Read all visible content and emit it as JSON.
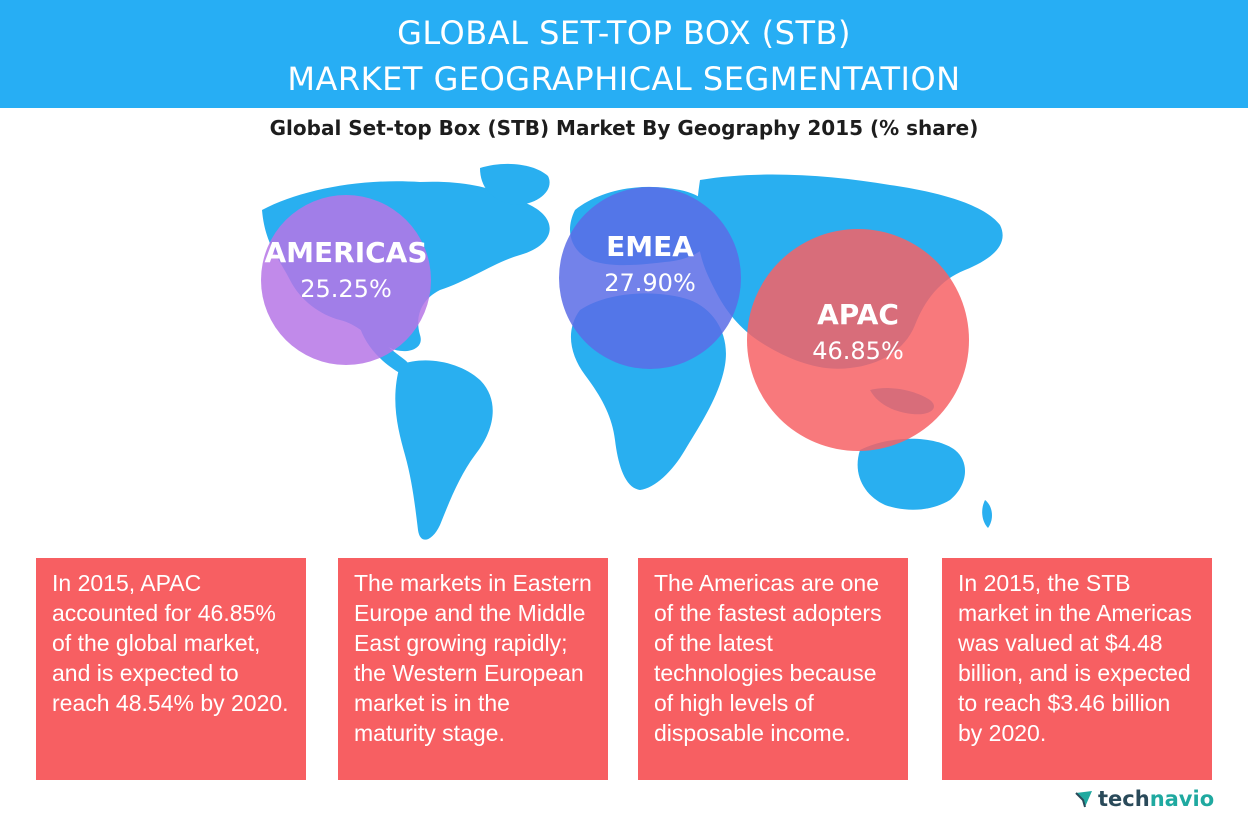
{
  "banner": {
    "line1": "GLOBAL SET-TOP BOX (STB)",
    "line2": "MARKET GEOGRAPHICAL SEGMENTATION"
  },
  "chart_data": {
    "type": "pie",
    "title": "Global Set-top Box (STB) Market By Geography 2015 (% share)",
    "categories": [
      "AMERICAS",
      "EMEA",
      "APAC"
    ],
    "values": [
      25.25,
      27.9,
      46.85
    ],
    "value_labels": [
      "25.25%",
      "27.90%",
      "46.85%"
    ],
    "colors": [
      "#b675e6",
      "#5a6ce6",
      "#f76265"
    ]
  },
  "map_color": "#29aff0",
  "cards": [
    "In 2015, APAC accounted for 46.85% of the global market, and is expected to reach 48.54% by 2020.",
    "The markets in Eastern Europe and the Middle East  growing rapidly; the Western European market is in the maturity stage.",
    "The Americas are one of the fastest adopters of the latest technologies because of high levels of disposable income.",
    "In 2015, the STB market in the Americas was valued at $4.48 billion, and is expected to reach $3.46 billion by 2020."
  ],
  "card_color": "#f75f62",
  "logo": {
    "prefix": "tech",
    "suffix": "navio"
  }
}
